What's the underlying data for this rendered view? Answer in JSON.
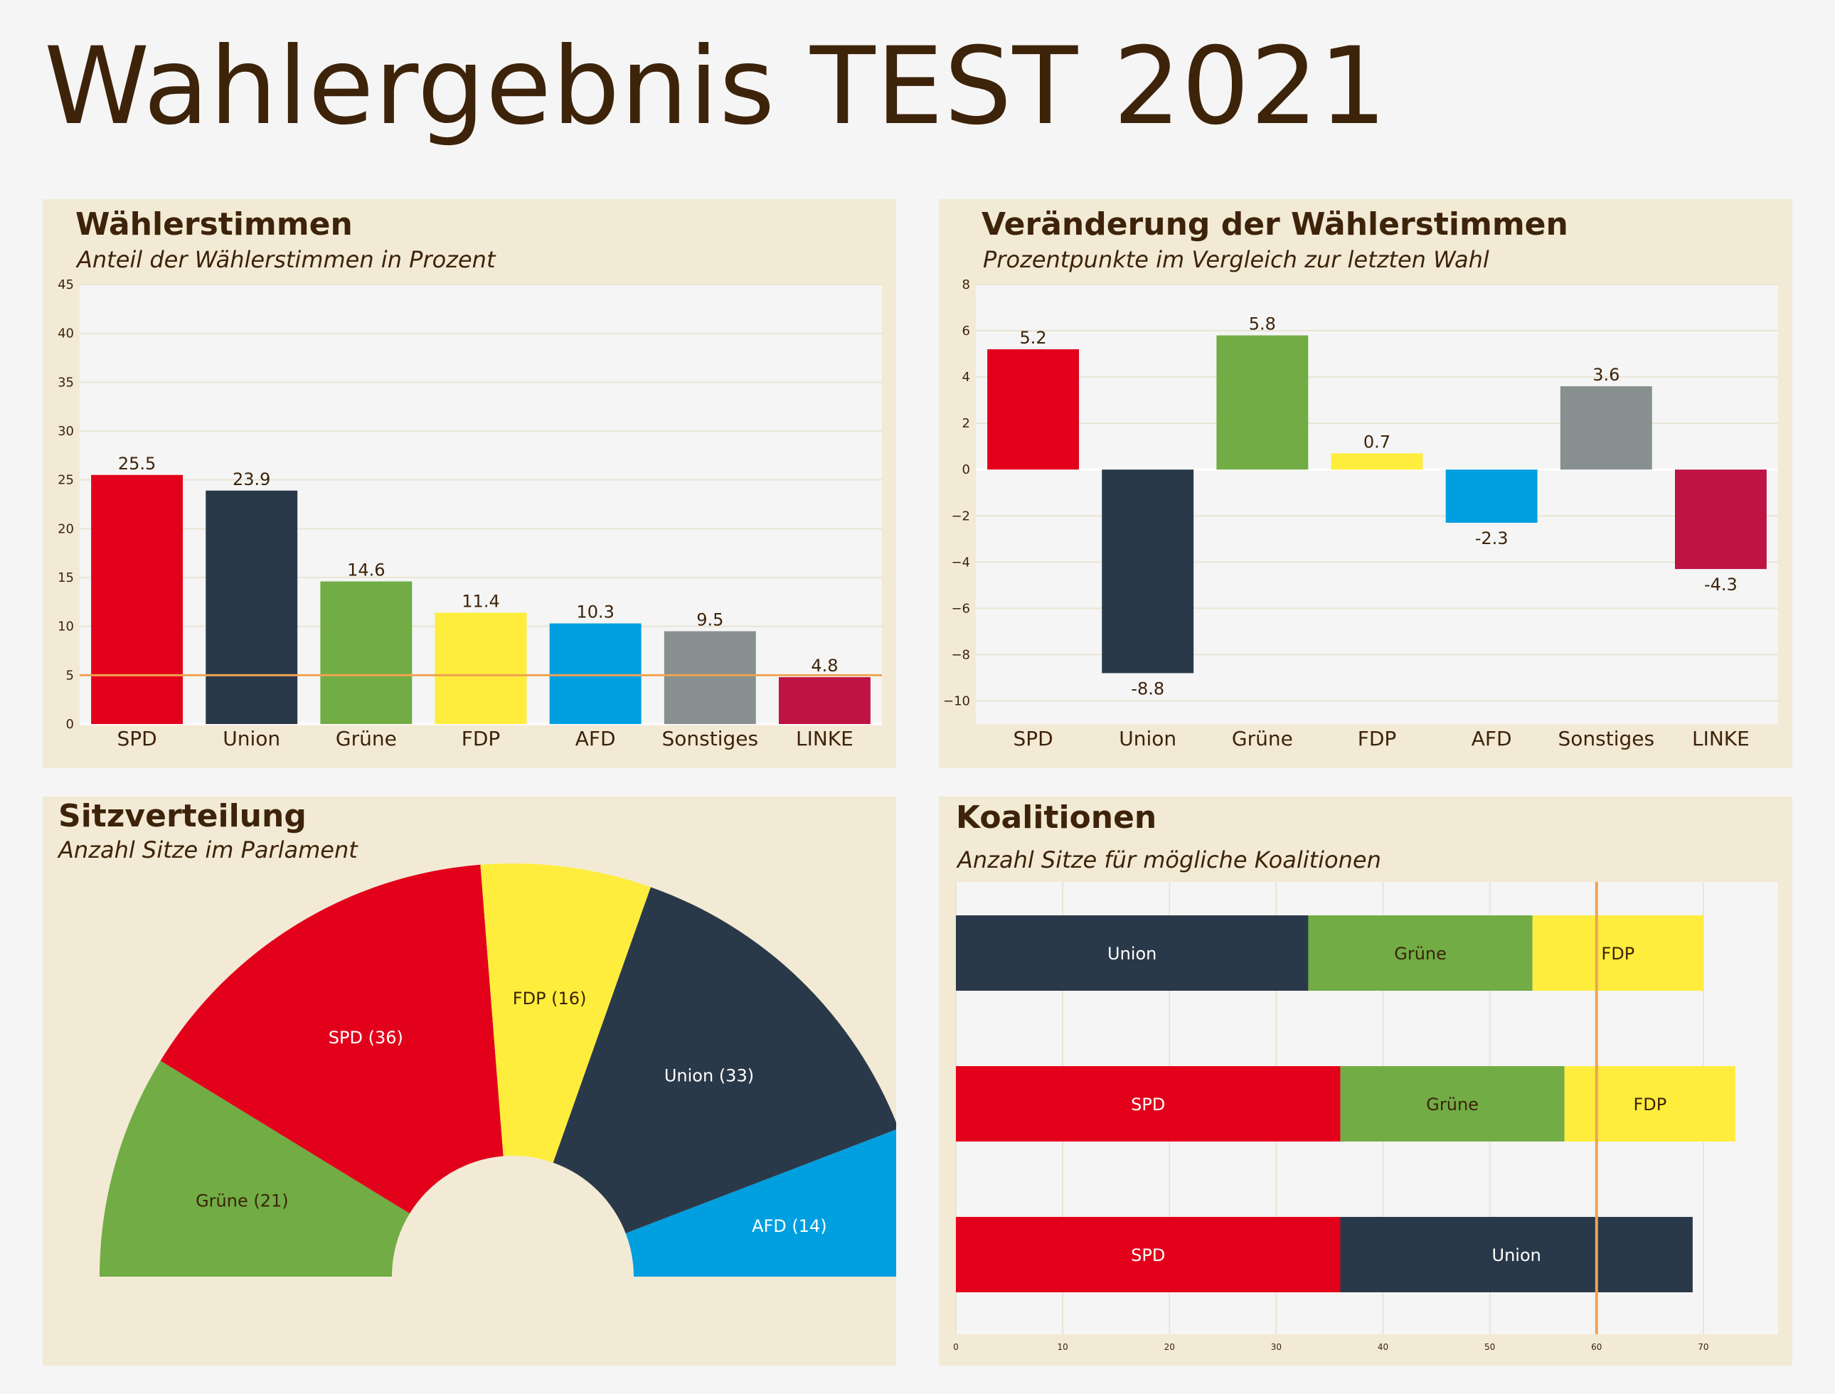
{
  "page": {
    "title": "Wahlergebnis TEST 2021"
  },
  "colors": {
    "SPD": "#e3001b",
    "Union": "#2a3949",
    "Grüne": "#71ac45",
    "FDP": "#ffed3d",
    "AFD": "#009fe0",
    "Sonstiges": "#878f8f",
    "LINKE": "#be1343",
    "threshold": "#f0a352",
    "plot_bg": "#f5f5f5",
    "panel_bg": "#f3ead5",
    "text": "#3d2309"
  },
  "panels": {
    "votes": {
      "title": "Wählerstimmen",
      "subtitle": "Anteil der Wählerstimmen in Prozent"
    },
    "change": {
      "title": "Veränderung der Wählerstimmen",
      "subtitle": "Prozentpunkte im Vergleich zur letzten Wahl"
    },
    "seats": {
      "title": "Sitzverteilung",
      "subtitle": "Anzahl Sitze im Parlament"
    },
    "coalitions": {
      "title": "Koalitionen",
      "subtitle": "Anzahl Sitze für mögliche Koalitionen"
    }
  },
  "chart_data": [
    {
      "type": "bar",
      "categories": [
        "SPD",
        "Union",
        "Grüne",
        "FDP",
        "AFD",
        "Sonstiges",
        "LINKE"
      ],
      "values": [
        25.5,
        23.9,
        14.6,
        11.4,
        10.3,
        9.5,
        4.8
      ],
      "value_labels": [
        "25.5",
        "23.9",
        "14.6",
        "11.4",
        "10.3",
        "9.5",
        "4.8"
      ],
      "ylim": [
        0,
        45
      ],
      "yticks": [
        0,
        5,
        10,
        15,
        20,
        25,
        30,
        35,
        40,
        45
      ],
      "ytick_labels": [
        "0",
        "5",
        "10",
        "15",
        "20",
        "25",
        "30",
        "35",
        "40",
        "45"
      ],
      "reference_line": 5,
      "grid": true
    },
    {
      "type": "bar",
      "categories": [
        "SPD",
        "Union",
        "Grüne",
        "FDP",
        "AFD",
        "Sonstiges",
        "LINKE"
      ],
      "values": [
        5.2,
        -8.8,
        5.8,
        0.7,
        -2.3,
        3.6,
        -4.3
      ],
      "value_labels": [
        "5.2",
        "-8.8",
        "5.8",
        "0.7",
        "-2.3",
        "3.6",
        "-4.3"
      ],
      "ylim": [
        -11,
        8
      ],
      "yticks": [
        -10,
        -8,
        -6,
        -4,
        -2,
        0,
        2,
        4,
        6,
        8
      ],
      "ytick_labels": [
        "−10",
        "−8",
        "−6",
        "−4",
        "−2",
        "0",
        "2",
        "4",
        "6",
        "8"
      ],
      "grid": true
    },
    {
      "type": "pie",
      "style": "half-donut",
      "slices": [
        {
          "party": "Grüne",
          "value": 21,
          "label": "Grüne (21)"
        },
        {
          "party": "SPD",
          "value": 36,
          "label": "SPD (36)"
        },
        {
          "party": "FDP",
          "value": 16,
          "label": "FDP (16)"
        },
        {
          "party": "Union",
          "value": 33,
          "label": "Union (33)"
        },
        {
          "party": "AFD",
          "value": 14,
          "label": "AFD (14)"
        }
      ]
    },
    {
      "type": "bar",
      "orientation": "horizontal",
      "stacked": true,
      "xlim": [
        0,
        77
      ],
      "xticks": [
        0,
        10,
        20,
        30,
        40,
        50,
        60,
        70
      ],
      "xtick_labels": [
        "0",
        "10",
        "20",
        "30",
        "40",
        "50",
        "60",
        "70"
      ],
      "reference_line": 60,
      "grid": true,
      "rows": [
        {
          "segments": [
            {
              "party": "Union",
              "value": 33,
              "label": "Union"
            },
            {
              "party": "Grüne",
              "value": 21,
              "label": "Grüne"
            },
            {
              "party": "FDP",
              "value": 16,
              "label": "FDP"
            }
          ]
        },
        {
          "segments": [
            {
              "party": "SPD",
              "value": 36,
              "label": "SPD"
            },
            {
              "party": "Grüne",
              "value": 21,
              "label": "Grüne"
            },
            {
              "party": "FDP",
              "value": 16,
              "label": "FDP"
            }
          ]
        },
        {
          "segments": [
            {
              "party": "SPD",
              "value": 36,
              "label": "SPD"
            },
            {
              "party": "Union",
              "value": 33,
              "label": "Union"
            }
          ]
        }
      ]
    }
  ]
}
